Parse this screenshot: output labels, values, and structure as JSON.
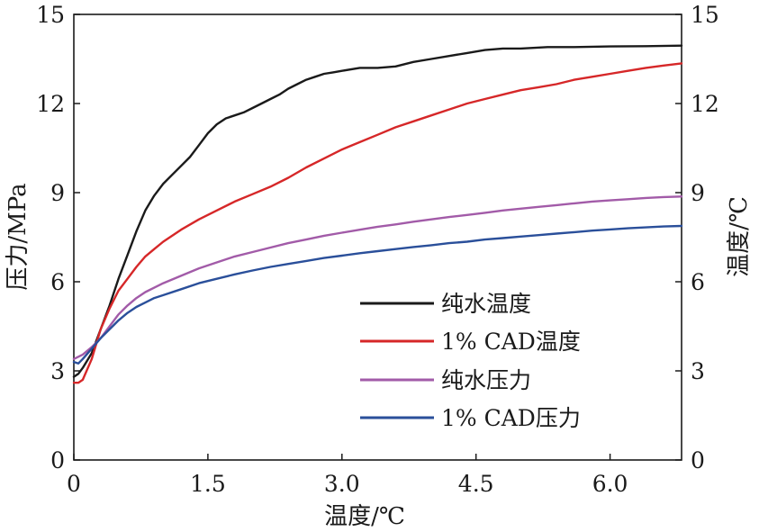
{
  "chart_data": {
    "type": "line",
    "xlabel": "温度/℃",
    "ylabel_left": "压力/MPa",
    "ylabel_right": "温度/℃",
    "xlim": [
      0,
      6.8
    ],
    "ylim_left": [
      0,
      15
    ],
    "ylim_right": [
      0,
      15
    ],
    "x_ticks": [
      "0",
      "1.5",
      "3.0",
      "4.5",
      "6.0"
    ],
    "y_ticks_left": [
      "0",
      "3",
      "6",
      "9",
      "12",
      "15"
    ],
    "y_ticks_right": [
      "0",
      "3",
      "6",
      "9",
      "12",
      "15"
    ],
    "grid": false,
    "legend_position": "lower-right",
    "series": [
      {
        "name": "纯水温度",
        "color": "#1a1a1a",
        "points": [
          [
            0,
            2.8
          ],
          [
            0.05,
            2.9
          ],
          [
            0.1,
            3.1
          ],
          [
            0.2,
            3.6
          ],
          [
            0.3,
            4.4
          ],
          [
            0.4,
            5.2
          ],
          [
            0.5,
            6.1
          ],
          [
            0.6,
            6.9
          ],
          [
            0.7,
            7.7
          ],
          [
            0.8,
            8.4
          ],
          [
            0.9,
            8.9
          ],
          [
            1.0,
            9.3
          ],
          [
            1.1,
            9.6
          ],
          [
            1.2,
            9.9
          ],
          [
            1.3,
            10.2
          ],
          [
            1.4,
            10.6
          ],
          [
            1.5,
            11.0
          ],
          [
            1.6,
            11.3
          ],
          [
            1.7,
            11.5
          ],
          [
            1.8,
            11.6
          ],
          [
            1.9,
            11.7
          ],
          [
            2.0,
            11.85
          ],
          [
            2.1,
            12.0
          ],
          [
            2.2,
            12.15
          ],
          [
            2.3,
            12.3
          ],
          [
            2.4,
            12.5
          ],
          [
            2.5,
            12.65
          ],
          [
            2.6,
            12.8
          ],
          [
            2.7,
            12.9
          ],
          [
            2.8,
            13.0
          ],
          [
            2.9,
            13.05
          ],
          [
            3.0,
            13.1
          ],
          [
            3.2,
            13.2
          ],
          [
            3.4,
            13.2
          ],
          [
            3.6,
            13.25
          ],
          [
            3.8,
            13.4
          ],
          [
            4.0,
            13.5
          ],
          [
            4.2,
            13.6
          ],
          [
            4.4,
            13.7
          ],
          [
            4.6,
            13.8
          ],
          [
            4.8,
            13.85
          ],
          [
            5.0,
            13.85
          ],
          [
            5.3,
            13.9
          ],
          [
            5.6,
            13.9
          ],
          [
            6.0,
            13.92
          ],
          [
            6.4,
            13.93
          ],
          [
            6.8,
            13.95
          ]
        ]
      },
      {
        "name": "1% CAD温度",
        "color": "#d62728",
        "points": [
          [
            0,
            2.6
          ],
          [
            0.05,
            2.6
          ],
          [
            0.1,
            2.7
          ],
          [
            0.2,
            3.4
          ],
          [
            0.3,
            4.4
          ],
          [
            0.4,
            5.1
          ],
          [
            0.5,
            5.7
          ],
          [
            0.6,
            6.1
          ],
          [
            0.7,
            6.5
          ],
          [
            0.8,
            6.85
          ],
          [
            0.9,
            7.1
          ],
          [
            1.0,
            7.35
          ],
          [
            1.2,
            7.75
          ],
          [
            1.4,
            8.1
          ],
          [
            1.6,
            8.4
          ],
          [
            1.8,
            8.7
          ],
          [
            2.0,
            8.95
          ],
          [
            2.2,
            9.2
          ],
          [
            2.4,
            9.5
          ],
          [
            2.6,
            9.85
          ],
          [
            2.8,
            10.15
          ],
          [
            3.0,
            10.45
          ],
          [
            3.2,
            10.7
          ],
          [
            3.4,
            10.95
          ],
          [
            3.6,
            11.2
          ],
          [
            3.8,
            11.4
          ],
          [
            4.0,
            11.6
          ],
          [
            4.2,
            11.8
          ],
          [
            4.4,
            12.0
          ],
          [
            4.6,
            12.15
          ],
          [
            4.8,
            12.3
          ],
          [
            5.0,
            12.45
          ],
          [
            5.2,
            12.55
          ],
          [
            5.4,
            12.65
          ],
          [
            5.6,
            12.8
          ],
          [
            5.8,
            12.9
          ],
          [
            6.0,
            13.0
          ],
          [
            6.2,
            13.1
          ],
          [
            6.4,
            13.2
          ],
          [
            6.6,
            13.28
          ],
          [
            6.8,
            13.35
          ]
        ]
      },
      {
        "name": "纯水压力",
        "color": "#a25ba8",
        "points": [
          [
            0,
            3.4
          ],
          [
            0.1,
            3.55
          ],
          [
            0.2,
            3.8
          ],
          [
            0.3,
            4.1
          ],
          [
            0.4,
            4.5
          ],
          [
            0.5,
            4.9
          ],
          [
            0.6,
            5.2
          ],
          [
            0.7,
            5.45
          ],
          [
            0.8,
            5.65
          ],
          [
            0.9,
            5.8
          ],
          [
            1.0,
            5.95
          ],
          [
            1.2,
            6.2
          ],
          [
            1.4,
            6.45
          ],
          [
            1.6,
            6.65
          ],
          [
            1.8,
            6.85
          ],
          [
            2.0,
            7.0
          ],
          [
            2.2,
            7.15
          ],
          [
            2.4,
            7.3
          ],
          [
            2.6,
            7.42
          ],
          [
            2.8,
            7.55
          ],
          [
            3.0,
            7.65
          ],
          [
            3.2,
            7.75
          ],
          [
            3.4,
            7.85
          ],
          [
            3.6,
            7.93
          ],
          [
            3.8,
            8.02
          ],
          [
            4.0,
            8.1
          ],
          [
            4.2,
            8.18
          ],
          [
            4.4,
            8.25
          ],
          [
            4.6,
            8.32
          ],
          [
            4.8,
            8.4
          ],
          [
            5.0,
            8.46
          ],
          [
            5.2,
            8.52
          ],
          [
            5.4,
            8.58
          ],
          [
            5.6,
            8.64
          ],
          [
            5.8,
            8.7
          ],
          [
            6.0,
            8.74
          ],
          [
            6.2,
            8.78
          ],
          [
            6.4,
            8.82
          ],
          [
            6.6,
            8.85
          ],
          [
            6.8,
            8.87
          ]
        ]
      },
      {
        "name": "1% CAD压力",
        "color": "#2a4f9a",
        "points": [
          [
            0,
            3.3
          ],
          [
            0.05,
            3.25
          ],
          [
            0.1,
            3.4
          ],
          [
            0.2,
            3.75
          ],
          [
            0.3,
            4.1
          ],
          [
            0.4,
            4.4
          ],
          [
            0.5,
            4.7
          ],
          [
            0.6,
            4.95
          ],
          [
            0.7,
            5.15
          ],
          [
            0.8,
            5.3
          ],
          [
            0.9,
            5.45
          ],
          [
            1.0,
            5.55
          ],
          [
            1.2,
            5.75
          ],
          [
            1.4,
            5.95
          ],
          [
            1.6,
            6.1
          ],
          [
            1.8,
            6.25
          ],
          [
            2.0,
            6.38
          ],
          [
            2.2,
            6.5
          ],
          [
            2.4,
            6.6
          ],
          [
            2.6,
            6.7
          ],
          [
            2.8,
            6.8
          ],
          [
            3.0,
            6.88
          ],
          [
            3.2,
            6.96
          ],
          [
            3.4,
            7.03
          ],
          [
            3.6,
            7.1
          ],
          [
            3.8,
            7.17
          ],
          [
            4.0,
            7.23
          ],
          [
            4.2,
            7.3
          ],
          [
            4.4,
            7.35
          ],
          [
            4.6,
            7.42
          ],
          [
            4.8,
            7.47
          ],
          [
            5.0,
            7.52
          ],
          [
            5.2,
            7.57
          ],
          [
            5.4,
            7.62
          ],
          [
            5.6,
            7.67
          ],
          [
            5.8,
            7.72
          ],
          [
            6.0,
            7.76
          ],
          [
            6.2,
            7.8
          ],
          [
            6.4,
            7.83
          ],
          [
            6.6,
            7.86
          ],
          [
            6.8,
            7.88
          ]
        ]
      }
    ]
  }
}
